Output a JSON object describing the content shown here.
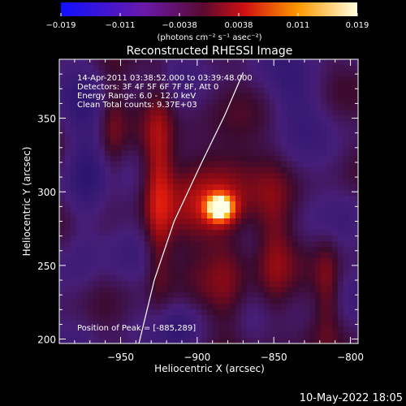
{
  "colorbar": {
    "ticks": [
      "−0.019",
      "−0.011",
      "−0.0038",
      "0.0038",
      "0.011",
      "0.019"
    ],
    "units": "(photons cm⁻² s⁻¹ asec⁻²)"
  },
  "chart_data": {
    "type": "heatmap",
    "title": "Reconstructed RHESSI Image",
    "xlabel": "Heliocentric X (arcsec)",
    "ylabel": "Heliocentric Y (arcsec)",
    "xlim": [
      -990,
      -795
    ],
    "ylim": [
      197,
      390
    ],
    "x_ticks": [
      -950,
      -900,
      -850,
      -800
    ],
    "y_ticks": [
      200,
      250,
      300,
      350
    ],
    "x_tick_labels": [
      "−950",
      "−900",
      "−850",
      "−800"
    ],
    "y_tick_labels": [
      "200",
      "250",
      "300",
      "350"
    ],
    "colorbar_range": [
      -0.019,
      0.019
    ],
    "colormap": "IDL red-temperature (blue-purple to white)",
    "peak": {
      "x": -885,
      "y": 289
    },
    "limb_curve": [
      [
        -938,
        197
      ],
      [
        -928,
        240
      ],
      [
        -915,
        280
      ],
      [
        -897,
        320
      ],
      [
        -882,
        352
      ],
      [
        -870,
        381
      ]
    ],
    "annotations": [
      "14-Apr-2011 03:38:52.000 to 03:39:48.000",
      "Detectors: 3F 4F 5F 6F 7F 8F, Att 0",
      "Energy Range: 6.0 - 12.0 keV",
      "Clean    Total counts: 9.37E+03"
    ],
    "peak_label": "Position of Peak = [-885,289]"
  },
  "footer": {
    "timestamp": "10-May-2022 18:05"
  }
}
